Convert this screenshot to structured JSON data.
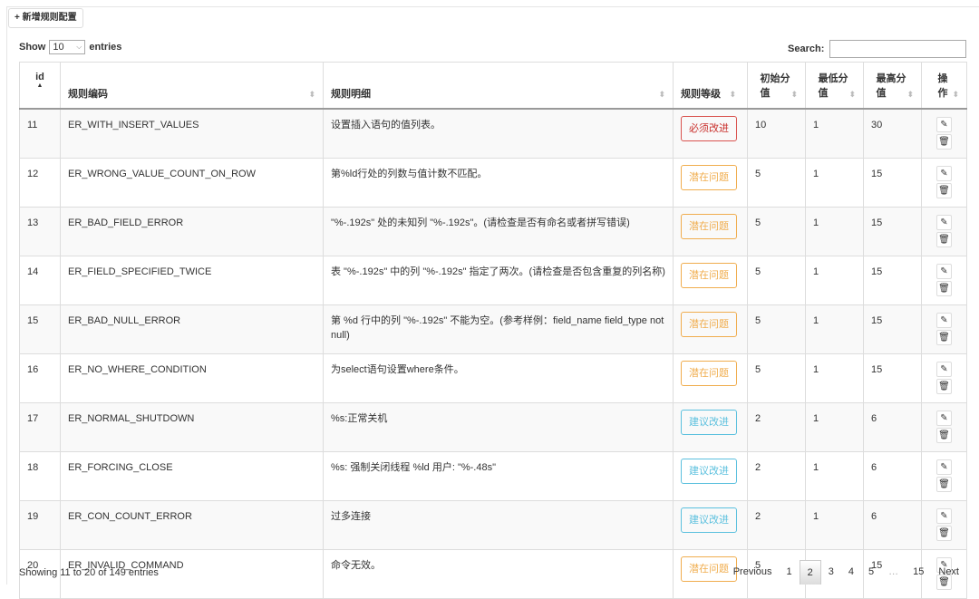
{
  "toolbar": {
    "add_label": "+ 新增规则配置"
  },
  "length": {
    "show": "Show",
    "value": "10",
    "entries": "entries"
  },
  "search": {
    "label": "Search:",
    "value": ""
  },
  "columns": [
    "id",
    "规则编码",
    "规则明细",
    "规则等级",
    "初始分值",
    "最低分值",
    "最高分值",
    "操作"
  ],
  "rows": [
    {
      "id": "11",
      "code": "ER_WITH_INSERT_VALUES",
      "detail": "设置插入语句的值列表。",
      "level": "必须改进",
      "level_type": "red",
      "init": "10",
      "min": "1",
      "max": "30"
    },
    {
      "id": "12",
      "code": "ER_WRONG_VALUE_COUNT_ON_ROW",
      "detail": "第%ld行处的列数与值计数不匹配。",
      "level": "潜在问题",
      "level_type": "yellow",
      "init": "5",
      "min": "1",
      "max": "15"
    },
    {
      "id": "13",
      "code": "ER_BAD_FIELD_ERROR",
      "detail": "\"%-.192s\" 处的未知列 \"%-.192s\"。(请检查是否有命名或者拼写错误)",
      "level": "潜在问题",
      "level_type": "yellow",
      "init": "5",
      "min": "1",
      "max": "15"
    },
    {
      "id": "14",
      "code": "ER_FIELD_SPECIFIED_TWICE",
      "detail": "表 \"%-.192s\" 中的列 \"%-.192s\" 指定了两次。(请检查是否包含重复的列名称)",
      "level": "潜在问题",
      "level_type": "yellow",
      "init": "5",
      "min": "1",
      "max": "15"
    },
    {
      "id": "15",
      "code": "ER_BAD_NULL_ERROR",
      "detail": "第 %d 行中的列 \"%-.192s\" 不能为空。(参考样例：field_name field_type not null)",
      "level": "潜在问题",
      "level_type": "yellow",
      "init": "5",
      "min": "1",
      "max": "15"
    },
    {
      "id": "16",
      "code": "ER_NO_WHERE_CONDITION",
      "detail": "为select语句设置where条件。",
      "level": "潜在问题",
      "level_type": "yellow",
      "init": "5",
      "min": "1",
      "max": "15"
    },
    {
      "id": "17",
      "code": "ER_NORMAL_SHUTDOWN",
      "detail": "%s:正常关机",
      "level": "建议改进",
      "level_type": "blue",
      "init": "2",
      "min": "1",
      "max": "6"
    },
    {
      "id": "18",
      "code": "ER_FORCING_CLOSE",
      "detail": "%s: 强制关闭线程 %ld 用户: \"%-.48s\"",
      "level": "建议改进",
      "level_type": "blue",
      "init": "2",
      "min": "1",
      "max": "6"
    },
    {
      "id": "19",
      "code": "ER_CON_COUNT_ERROR",
      "detail": "过多连接",
      "level": "建议改进",
      "level_type": "blue",
      "init": "2",
      "min": "1",
      "max": "6"
    },
    {
      "id": "20",
      "code": "ER_INVALID_COMMAND",
      "detail": "命令无效。",
      "level": "潜在问题",
      "level_type": "yellow",
      "init": "5",
      "min": "1",
      "max": "15"
    }
  ],
  "icons": {
    "edit": "edit-icon",
    "delete": "trash-icon"
  },
  "footer": {
    "info": "Showing 11 to 20 of 149 entries"
  },
  "pagination": {
    "previous": "Previous",
    "pages": [
      "1",
      "2",
      "3",
      "4",
      "5",
      "…",
      "15"
    ],
    "current": "2",
    "next": "Next"
  }
}
